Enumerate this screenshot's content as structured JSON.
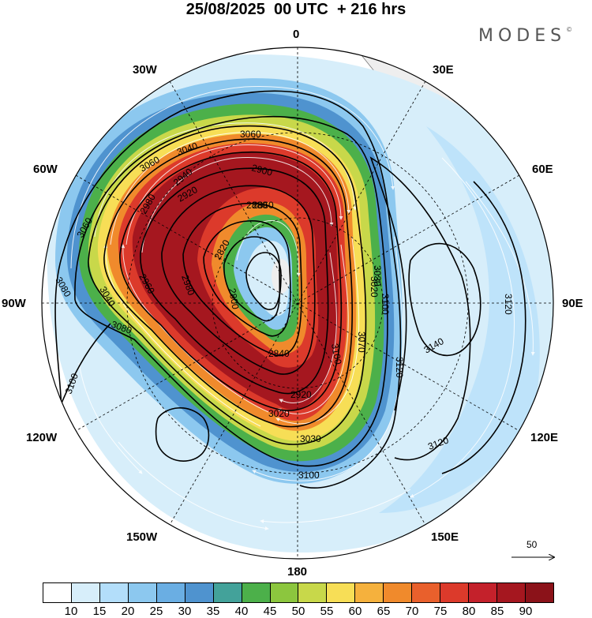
{
  "header": {
    "title": "25/08/2025  00 UTC  + 216 hrs",
    "brand": "MODES",
    "brand_mark": "©"
  },
  "map": {
    "meridian_labels": [
      "0",
      "30E",
      "60E",
      "90E",
      "120E",
      "150E",
      "180",
      "150W",
      "120W",
      "90W",
      "60W",
      "30W"
    ],
    "contour_labels": [
      "3060",
      "3040",
      "3060",
      "2980",
      "2940",
      "2880",
      "2860",
      "2900",
      "2920",
      "3060",
      "3040",
      "2960",
      "2980",
      "2820",
      "2800",
      "3020",
      "3030",
      "3100",
      "3080",
      "3080",
      "3100",
      "3070",
      "2840",
      "2920",
      "3020",
      "3030",
      "3100",
      "3120",
      "3140",
      "3120",
      "3120",
      "3100"
    ],
    "reference_vector_label": "50",
    "colors": {
      "land": "#eeeeee",
      "contour": "#000000",
      "graticule": "#000000",
      "streamline": "#ffffff"
    }
  },
  "colorbar": {
    "tick_labels": [
      "10",
      "15",
      "20",
      "25",
      "30",
      "35",
      "40",
      "45",
      "50",
      "55",
      "60",
      "65",
      "70",
      "75",
      "80",
      "85",
      "90"
    ],
    "colors": [
      "#ffffff",
      "#d7eefa",
      "#b3defa",
      "#8cc8ef",
      "#6aaee3",
      "#4f93cf",
      "#43a29a",
      "#4cb04a",
      "#8cc63e",
      "#c8d84a",
      "#f7de56",
      "#f5b13d",
      "#f08a2c",
      "#e9602c",
      "#dc3a2b",
      "#c4212b",
      "#a5171f",
      "#8b1219"
    ]
  }
}
